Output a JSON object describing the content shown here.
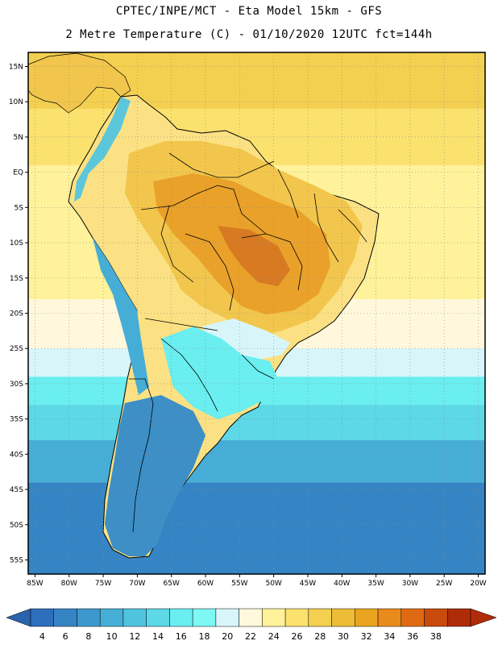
{
  "header": {
    "line1": "CPTEC/INPE/MCT -  Eta Model 15km - GFS",
    "line2": "2 Metre Temperature (C) - 01/10/2020 12UTC fct=144h"
  },
  "map": {
    "lon_range": [
      -86,
      -19
    ],
    "lat_range": [
      -57,
      17
    ],
    "lon_ticks": [
      "85W",
      "80W",
      "75W",
      "70W",
      "65W",
      "60W",
      "55W",
      "50W",
      "45W",
      "40W",
      "35W",
      "30W",
      "25W",
      "20W"
    ],
    "lon_values": [
      -85,
      -80,
      -75,
      -70,
      -65,
      -60,
      -55,
      -50,
      -45,
      -40,
      -35,
      -30,
      -25,
      -20
    ],
    "lat_ticks": [
      "15N",
      "10N",
      "5N",
      "EQ",
      "5S",
      "10S",
      "15S",
      "20S",
      "25S",
      "30S",
      "35S",
      "40S",
      "45S",
      "50S",
      "55S"
    ],
    "lat_values": [
      15,
      10,
      5,
      0,
      -5,
      -10,
      -15,
      -20,
      -25,
      -30,
      -35,
      -40,
      -45,
      -50,
      -55
    ],
    "ocean_bands": [
      {
        "lat_top": 17,
        "lat_bottom": 9,
        "temp": 28
      },
      {
        "lat_top": 9,
        "lat_bottom": 1,
        "temp": 26
      },
      {
        "lat_top": 1,
        "lat_bottom": -18,
        "temp": 24
      },
      {
        "lat_top": -18,
        "lat_bottom": -25,
        "temp": 22
      },
      {
        "lat_top": -25,
        "lat_bottom": -29,
        "temp": 20
      },
      {
        "lat_top": -29,
        "lat_bottom": -33,
        "temp": 16
      },
      {
        "lat_top": -33,
        "lat_bottom": -38,
        "temp": 14
      },
      {
        "lat_top": -38,
        "lat_bottom": -44,
        "temp": 10
      },
      {
        "lat_top": -44,
        "lat_bottom": -57,
        "temp": 6
      }
    ]
  },
  "colorbar": {
    "labels": [
      "4",
      "6",
      "8",
      "10",
      "12",
      "14",
      "16",
      "18",
      "20",
      "22",
      "24",
      "26",
      "28",
      "30",
      "32",
      "34",
      "36",
      "38"
    ],
    "colors": [
      "#2e6fbd",
      "#3585c4",
      "#3d98cd",
      "#46aed6",
      "#50c4de",
      "#5cd8e6",
      "#6aeef0",
      "#7df8f4",
      "#d8f6fa",
      "#fff8dc",
      "#fff29a",
      "#fbe16e",
      "#f4d050",
      "#edbd38",
      "#eaa41f",
      "#e88a1c",
      "#e06a14",
      "#c84a0c",
      "#b02c08"
    ],
    "left_arrow_color": "#2a62ac",
    "right_arrow_color": "#b02c08"
  },
  "palette": {
    "land_hot_core": "#d77a22",
    "land_hot": "#e9a12a",
    "land_warm": "#f2c64c",
    "land_mild": "#fbe183",
    "andes_cold": "#5cc7da",
    "patagonia_cold": "#3d8fc6",
    "border_color": "#000000",
    "grid_color": "#8a8a8a"
  }
}
